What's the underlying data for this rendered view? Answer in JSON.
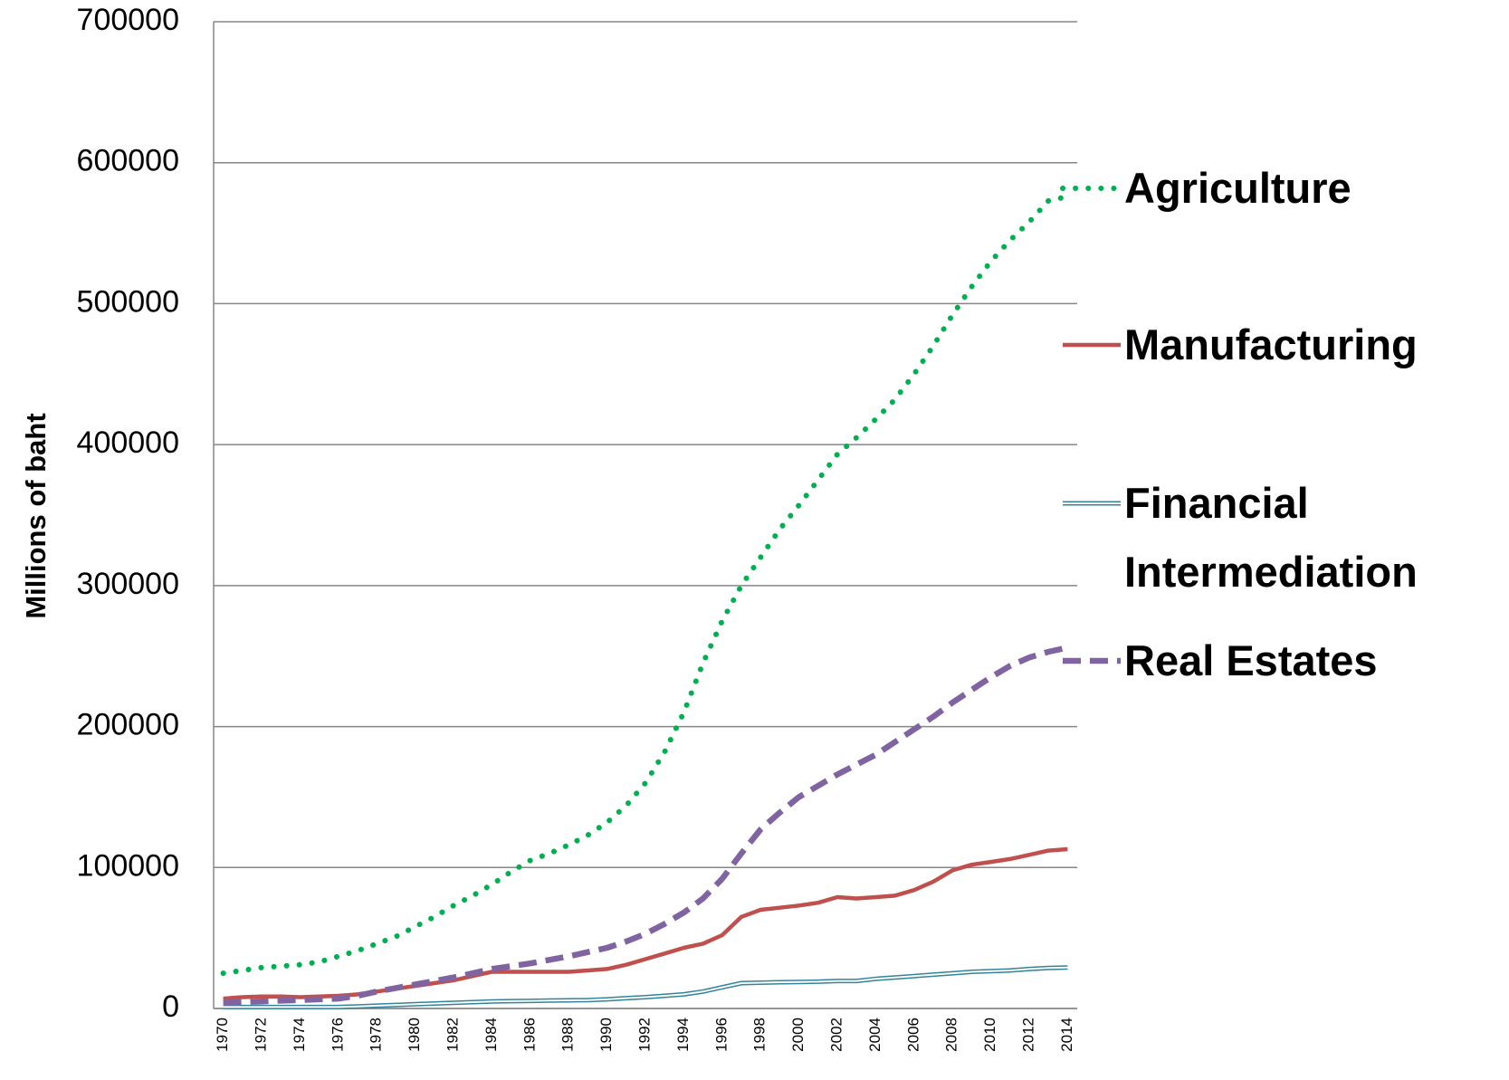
{
  "chart_data": {
    "type": "line",
    "y_label": "Millions of baht",
    "categories": [
      "1970",
      null,
      "1972",
      null,
      "1974",
      null,
      "1976",
      null,
      "1978",
      null,
      "1980",
      null,
      "1982",
      null,
      "1984",
      null,
      "1986",
      null,
      "1988",
      null,
      "1990",
      null,
      "1992",
      null,
      "1994",
      null,
      "1996",
      null,
      "1998",
      null,
      "2000",
      null,
      "2002",
      null,
      "2004",
      null,
      "2006",
      null,
      "2008",
      null,
      "2010",
      null,
      "2012",
      null,
      "2014"
    ],
    "series": [
      {
        "name": "Agriculture",
        "color": "#00b050",
        "style": "dotted",
        "values": [
          25000,
          27000,
          29000,
          30000,
          31000,
          33000,
          37000,
          41000,
          46000,
          51000,
          58000,
          65000,
          73000,
          80000,
          88000,
          97000,
          105000,
          110000,
          116000,
          123000,
          132000,
          144000,
          160000,
          182000,
          210000,
          245000,
          275000,
          300000,
          320000,
          340000,
          357000,
          375000,
          393000,
          405000,
          418000,
          432000,
          450000,
          470000,
          492000,
          512000,
          530000,
          545000,
          558000,
          573000,
          576000
        ]
      },
      {
        "name": "Manufacturing",
        "color": "#c0504d",
        "style": "solid",
        "values": [
          7000,
          8000,
          8500,
          8500,
          8000,
          8500,
          9000,
          10000,
          12000,
          14000,
          16000,
          18000,
          20000,
          23000,
          26000,
          26000,
          26000,
          26000,
          26000,
          27000,
          28000,
          31000,
          35000,
          39000,
          43000,
          46000,
          52000,
          65000,
          70000,
          71500,
          73000,
          75000,
          79000,
          78000,
          79000,
          80000,
          84000,
          90000,
          98000,
          102000,
          104000,
          106000,
          109000,
          112000,
          113000
        ]
      },
      {
        "name": "Financial Intermediation",
        "color": "#31849b",
        "style": "double",
        "values": [
          1000,
          1000,
          1000,
          1000,
          1000,
          1000,
          1000,
          1500,
          2000,
          2500,
          3000,
          3500,
          4000,
          4500,
          5000,
          5200,
          5400,
          5600,
          5800,
          6000,
          6500,
          7300,
          8000,
          9000,
          10000,
          12000,
          15000,
          18000,
          18300,
          18600,
          18800,
          19000,
          19500,
          19500,
          21000,
          22000,
          23000,
          24000,
          25000,
          26000,
          26500,
          27000,
          28000,
          28800,
          29000
        ]
      },
      {
        "name": "Real Estates",
        "color": "#8064a2",
        "style": "dashed",
        "values": [
          4000,
          4500,
          5000,
          5500,
          6000,
          6500,
          7000,
          9000,
          12000,
          14500,
          17000,
          19500,
          22000,
          25000,
          28000,
          30000,
          32000,
          34500,
          37000,
          40000,
          43000,
          47500,
          53000,
          60000,
          68000,
          78000,
          92000,
          110000,
          127000,
          139000,
          150000,
          158000,
          166000,
          173000,
          180000,
          189000,
          198000,
          207000,
          217000,
          226000,
          235000,
          243000,
          249000,
          253000,
          256000
        ]
      }
    ],
    "ylim": [
      0,
      700000
    ],
    "yticks": [
      0,
      100000,
      200000,
      300000,
      400000,
      500000,
      600000,
      700000
    ],
    "grid": true,
    "legend": "right"
  }
}
